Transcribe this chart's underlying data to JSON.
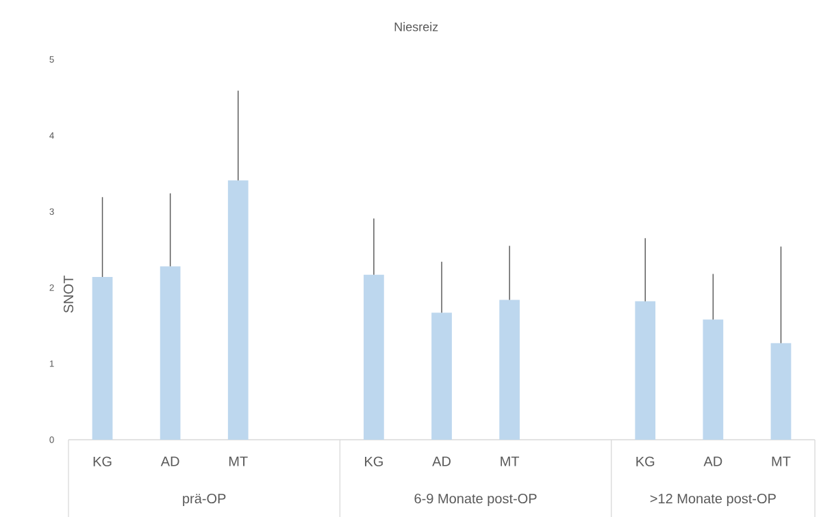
{
  "chart_data": {
    "type": "bar",
    "title": "Niesreiz",
    "ylabel": "SNOT",
    "categories": [
      "KG",
      "AD",
      "MT",
      null,
      "KG",
      "AD",
      "MT",
      null,
      "KG",
      "AD",
      "MT"
    ],
    "values": [
      2.14,
      2.28,
      3.41,
      null,
      2.17,
      1.67,
      1.84,
      null,
      1.82,
      1.58,
      1.27
    ],
    "errors": [
      [
        2.14,
        3.19
      ],
      [
        2.28,
        3.24
      ],
      [
        3.41,
        4.59
      ],
      null,
      [
        2.17,
        2.91
      ],
      [
        1.67,
        2.34
      ],
      [
        1.84,
        2.55
      ],
      null,
      [
        1.82,
        2.65
      ],
      [
        1.58,
        2.18
      ],
      [
        1.27,
        2.54
      ]
    ],
    "color": "#bdd7ee",
    "ylim": [
      0,
      5
    ],
    "yticks": [
      0,
      1,
      2,
      3,
      4,
      5
    ],
    "annotations": [
      "prä-OP",
      "6-9 Monate post-OP",
      ">12 Monate post-OP"
    ]
  }
}
